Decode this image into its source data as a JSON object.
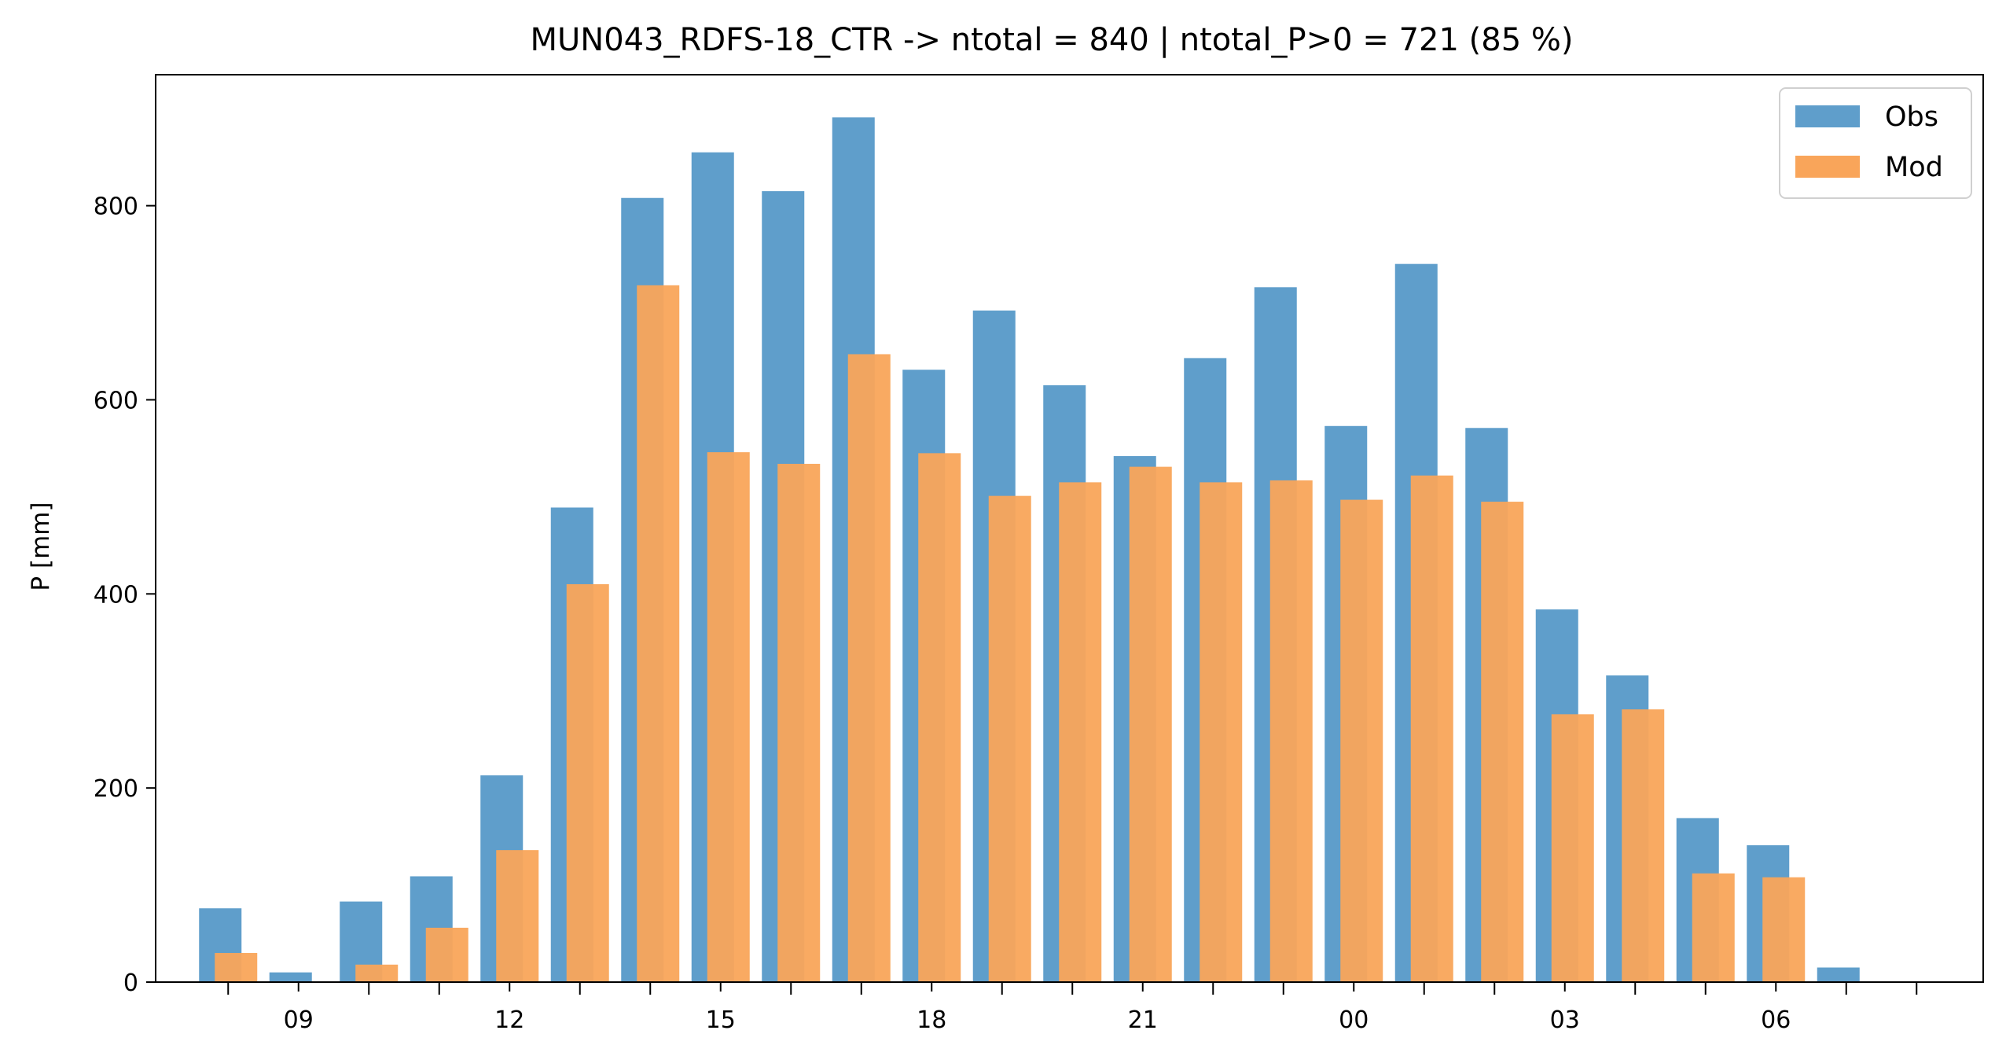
{
  "chart_data": {
    "type": "bar",
    "title": "MUN043_RDFS-18_CTR -> ntotal = 840 | ntotal_P>0 = 721 (85 %)",
    "xlabel": "",
    "ylabel": "P [mm]",
    "ylim": [
      0,
      935
    ],
    "yticks": [
      0,
      200,
      400,
      600,
      800
    ],
    "hours": [
      8,
      9,
      10,
      11,
      12,
      13,
      14,
      15,
      16,
      17,
      18,
      19,
      20,
      21,
      22,
      23,
      0,
      1,
      2,
      3,
      4,
      5,
      6,
      7
    ],
    "xtick_labels": [
      "09",
      "12",
      "15",
      "18",
      "21",
      "00",
      "03",
      "06"
    ],
    "grid": false,
    "legend_position": "top-right",
    "series": [
      {
        "name": "Obs",
        "color": "#5f9ecb",
        "values": [
          76,
          10,
          83,
          109,
          213,
          489,
          808,
          855,
          815,
          891,
          631,
          692,
          615,
          542,
          643,
          716,
          573,
          740,
          571,
          384,
          316,
          169,
          141,
          15
        ]
      },
      {
        "name": "Mod",
        "color": "#f9a55a",
        "values": [
          30,
          0,
          18,
          56,
          136,
          410,
          718,
          546,
          534,
          647,
          545,
          501,
          515,
          531,
          515,
          517,
          497,
          522,
          495,
          276,
          281,
          112,
          108,
          0
        ]
      }
    ]
  }
}
